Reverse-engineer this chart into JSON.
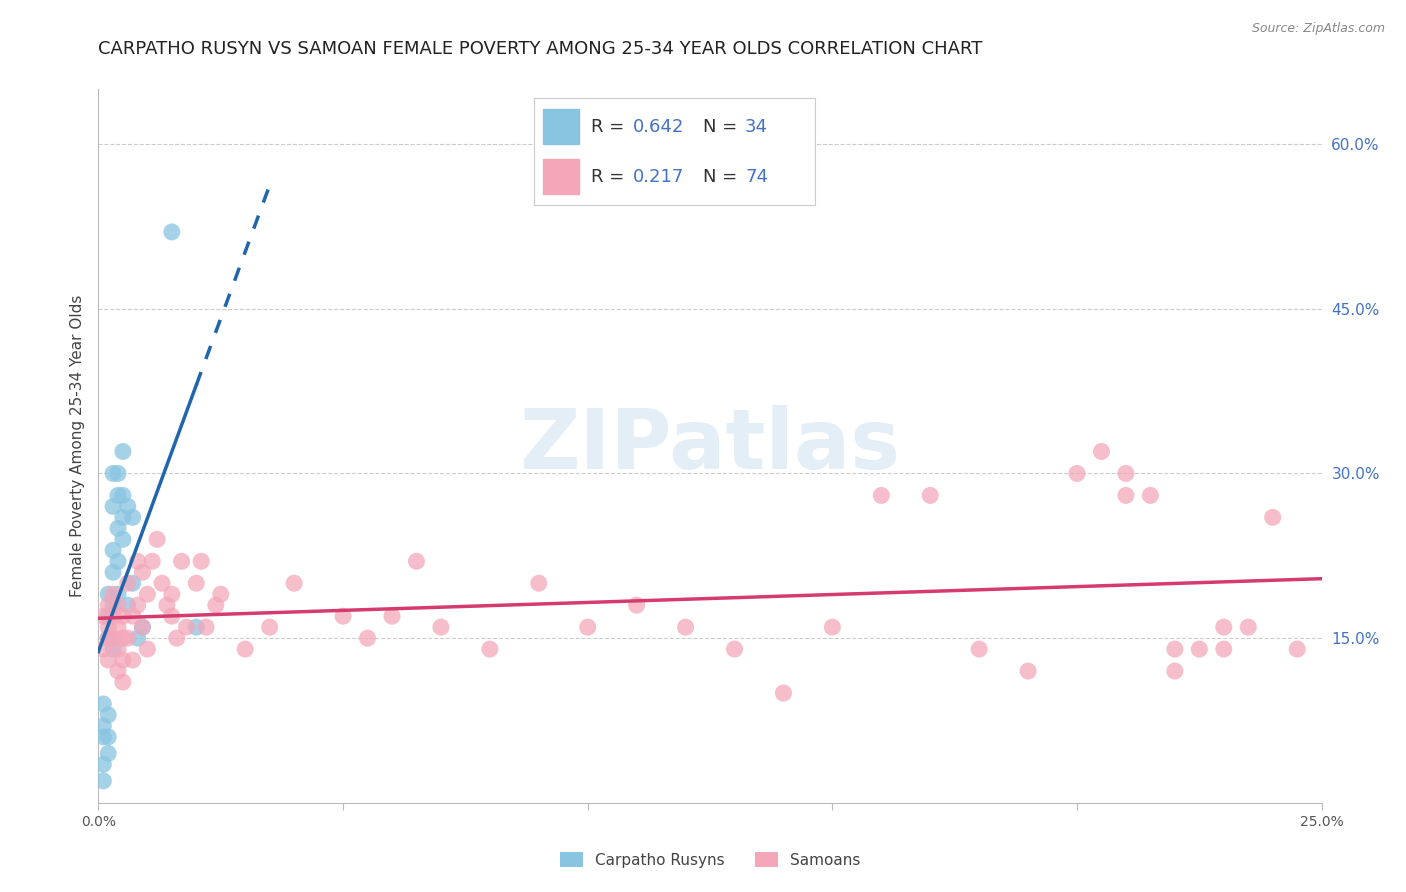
{
  "title": "CARPATHO RUSYN VS SAMOAN FEMALE POVERTY AMONG 25-34 YEAR OLDS CORRELATION CHART",
  "source": "Source: ZipAtlas.com",
  "ylabel": "Female Poverty Among 25-34 Year Olds",
  "xlim": [
    0.0,
    0.25
  ],
  "ylim": [
    0.0,
    0.65
  ],
  "ytick_labels_right": [
    "15.0%",
    "30.0%",
    "45.0%",
    "60.0%"
  ],
  "ytick_vals_right": [
    0.15,
    0.3,
    0.45,
    0.6
  ],
  "grid_color": "#cccccc",
  "background_color": "#ffffff",
  "blue_color": "#89c4e1",
  "pink_color": "#f4a7b9",
  "blue_line_color": "#2166ac",
  "pink_line_color": "#d63b6e",
  "legend_R1": "0.642",
  "legend_N1": "34",
  "legend_R2": "0.217",
  "legend_N2": "74",
  "legend_label1": "Carpatho Rusyns",
  "legend_label2": "Samoans",
  "watermark_text": "ZIPatlas",
  "title_fontsize": 13,
  "axis_label_fontsize": 11,
  "tick_fontsize": 10,
  "carpatho_x": [
    0.001,
    0.001,
    0.001,
    0.001,
    0.001,
    0.002,
    0.002,
    0.002,
    0.002,
    0.002,
    0.002,
    0.003,
    0.003,
    0.003,
    0.003,
    0.003,
    0.003,
    0.004,
    0.004,
    0.004,
    0.004,
    0.004,
    0.005,
    0.005,
    0.005,
    0.005,
    0.006,
    0.006,
    0.007,
    0.007,
    0.008,
    0.009,
    0.015,
    0.02
  ],
  "carpatho_y": [
    0.035,
    0.06,
    0.07,
    0.09,
    0.02,
    0.15,
    0.17,
    0.19,
    0.08,
    0.045,
    0.06,
    0.21,
    0.23,
    0.27,
    0.3,
    0.18,
    0.14,
    0.25,
    0.28,
    0.22,
    0.19,
    0.3,
    0.26,
    0.24,
    0.28,
    0.32,
    0.27,
    0.18,
    0.26,
    0.2,
    0.15,
    0.16,
    0.52,
    0.16
  ],
  "samoan_x": [
    0.001,
    0.001,
    0.002,
    0.002,
    0.002,
    0.002,
    0.003,
    0.003,
    0.003,
    0.004,
    0.004,
    0.004,
    0.004,
    0.005,
    0.005,
    0.005,
    0.005,
    0.006,
    0.006,
    0.007,
    0.007,
    0.008,
    0.008,
    0.009,
    0.009,
    0.01,
    0.01,
    0.011,
    0.012,
    0.013,
    0.014,
    0.015,
    0.015,
    0.016,
    0.017,
    0.018,
    0.02,
    0.021,
    0.022,
    0.024,
    0.025,
    0.03,
    0.035,
    0.04,
    0.05,
    0.055,
    0.06,
    0.065,
    0.07,
    0.08,
    0.09,
    0.1,
    0.11,
    0.12,
    0.13,
    0.14,
    0.15,
    0.16,
    0.17,
    0.18,
    0.19,
    0.2,
    0.205,
    0.21,
    0.21,
    0.215,
    0.22,
    0.22,
    0.225,
    0.23,
    0.23,
    0.235,
    0.24,
    0.245
  ],
  "samoan_y": [
    0.17,
    0.14,
    0.16,
    0.18,
    0.13,
    0.15,
    0.19,
    0.15,
    0.17,
    0.14,
    0.12,
    0.16,
    0.18,
    0.15,
    0.13,
    0.17,
    0.11,
    0.2,
    0.15,
    0.17,
    0.13,
    0.22,
    0.18,
    0.21,
    0.16,
    0.19,
    0.14,
    0.22,
    0.24,
    0.2,
    0.18,
    0.17,
    0.19,
    0.15,
    0.22,
    0.16,
    0.2,
    0.22,
    0.16,
    0.18,
    0.19,
    0.14,
    0.16,
    0.2,
    0.17,
    0.15,
    0.17,
    0.22,
    0.16,
    0.14,
    0.2,
    0.16,
    0.18,
    0.16,
    0.14,
    0.1,
    0.16,
    0.28,
    0.28,
    0.14,
    0.12,
    0.3,
    0.32,
    0.28,
    0.3,
    0.28,
    0.14,
    0.12,
    0.14,
    0.14,
    0.16,
    0.16,
    0.26,
    0.14
  ]
}
